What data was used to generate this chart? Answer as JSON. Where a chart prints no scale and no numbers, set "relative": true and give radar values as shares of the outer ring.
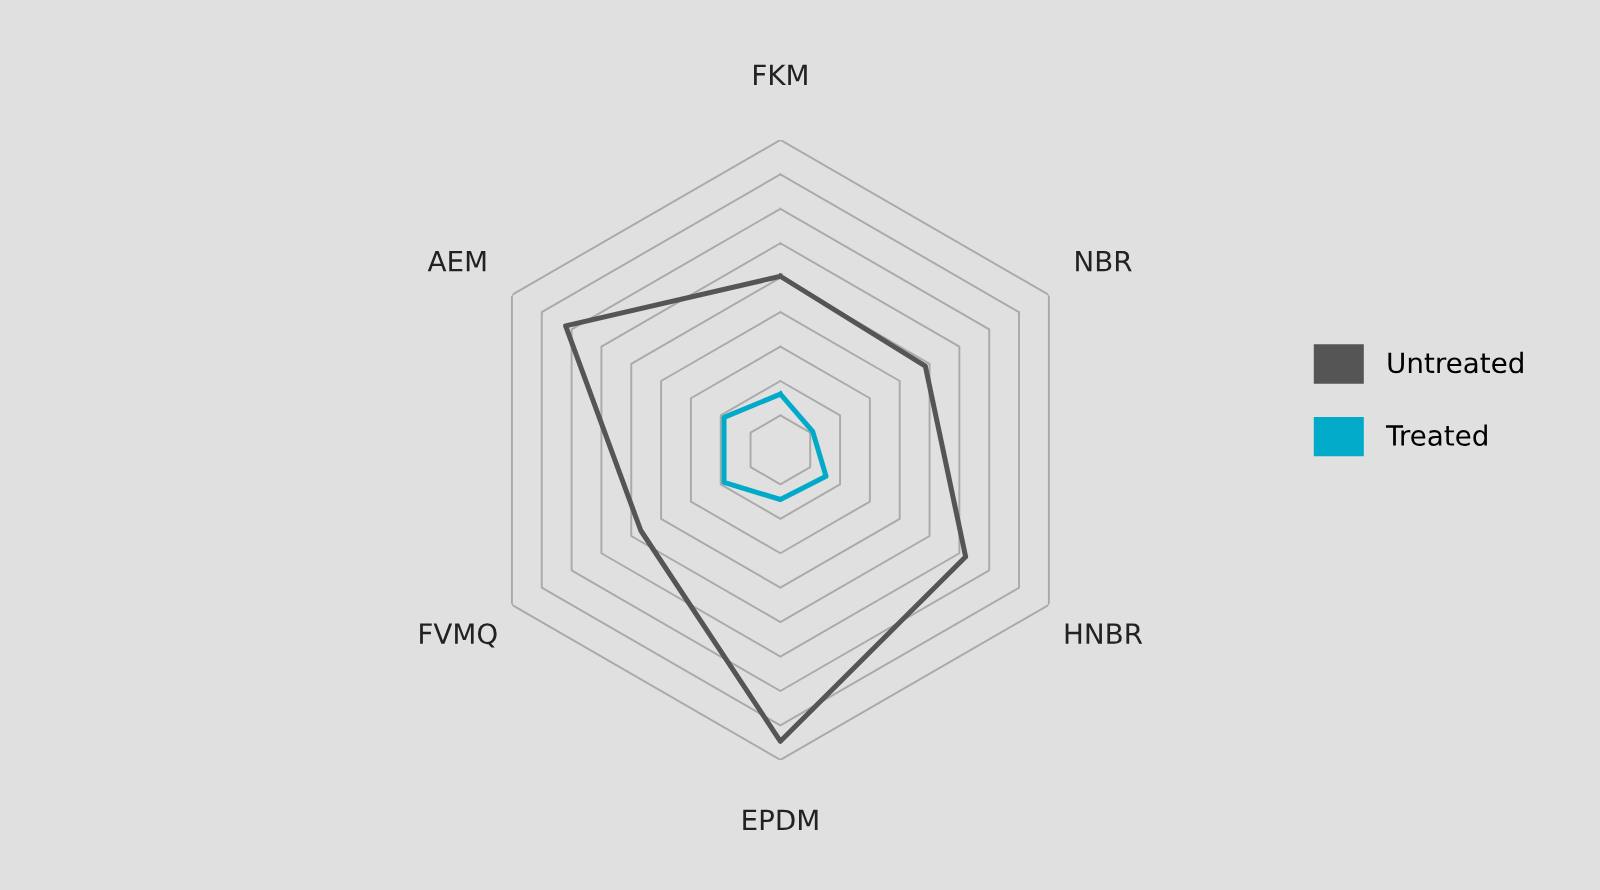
{
  "chart_data": {
    "type": "radar",
    "relative": true,
    "grid": true,
    "legend": "right",
    "categories": [
      "FKM",
      "NBR",
      "HNBR",
      "EPDM",
      "FVMQ",
      "AEM"
    ],
    "series": [
      {
        "name": "Untreated",
        "color": "#555555",
        "values": [
          0.56,
          0.54,
          0.69,
          0.94,
          0.52,
          0.8
        ]
      },
      {
        "name": "Treated",
        "color": "#00aac8",
        "values": [
          0.18,
          0.12,
          0.17,
          0.16,
          0.21,
          0.21
        ]
      }
    ]
  }
}
